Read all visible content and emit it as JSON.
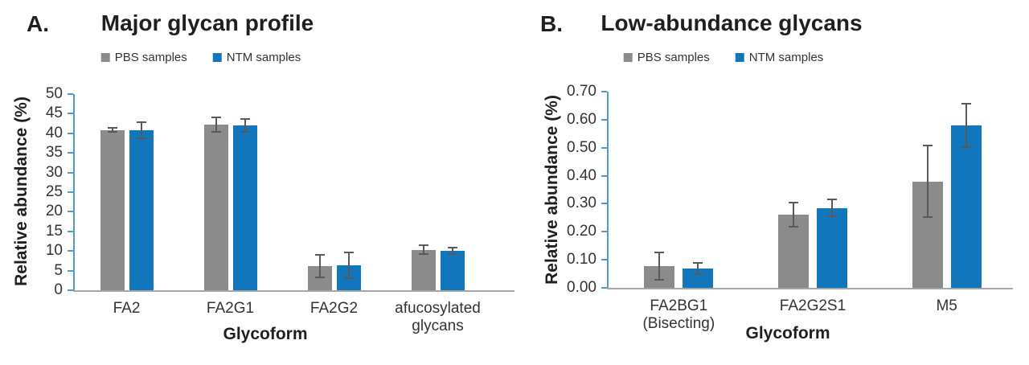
{
  "figure": {
    "colors": {
      "pbs_gray": "#8b8b8b",
      "ntm_blue": "#1276bc",
      "error_bar": "#595959",
      "y_axis_line": "#4f9bc9",
      "x_axis_line": "#a6a6a6"
    },
    "panels": [
      {
        "panel_label": "A.",
        "title": "Major glycan profile",
        "legend": [
          {
            "label": "PBS samples",
            "color": "#8b8b8b"
          },
          {
            "label": "NTM samples",
            "color": "#1276bc"
          }
        ],
        "chart_data": {
          "type": "bar",
          "title": "Major glycan profile",
          "xlabel": "Glycoform",
          "ylabel": "Relative abundance (%)",
          "ylim": [
            0,
            50
          ],
          "ytick_step": 5,
          "ytick_labels": [
            "0",
            "5",
            "10",
            "15",
            "20",
            "25",
            "30",
            "35",
            "40",
            "45",
            "50"
          ],
          "grid": false,
          "legend_position": "top",
          "categories": [
            "FA2",
            "FA2G1",
            "FA2G2",
            "afucosylated\nglycans"
          ],
          "series": [
            {
              "name": "PBS samples",
              "color": "#8b8b8b",
              "values": [
                40.8,
                42.2,
                6.2,
                10.3
              ],
              "errors": [
                0.5,
                1.9,
                2.9,
                1.1
              ]
            },
            {
              "name": "NTM samples",
              "color": "#1276bc",
              "values": [
                40.8,
                42.0,
                6.4,
                10.1
              ],
              "errors": [
                2.0,
                1.6,
                3.3,
                0.8
              ]
            }
          ]
        }
      },
      {
        "panel_label": "B.",
        "title": "Low-abundance glycans",
        "legend": [
          {
            "label": "PBS samples",
            "color": "#8b8b8b"
          },
          {
            "label": "NTM samples",
            "color": "#1276bc"
          }
        ],
        "chart_data": {
          "type": "bar",
          "title": "Low-abundance glycans",
          "xlabel": "Glycoform",
          "ylabel": "Relative abundance (%)",
          "ylim": [
            0,
            0.7
          ],
          "ytick_step": 0.1,
          "ytick_labels": [
            "0.00",
            "0.10",
            "0.20",
            "0.30",
            "0.40",
            "0.50",
            "0.60",
            "0.70"
          ],
          "grid": false,
          "legend_position": "top",
          "categories": [
            "FA2BG1\n(Bisecting)",
            "FA2G2S1",
            "M5"
          ],
          "series": [
            {
              "name": "PBS samples",
              "color": "#8b8b8b",
              "values": [
                0.078,
                0.26,
                0.38
              ],
              "errors": [
                0.048,
                0.043,
                0.127
              ]
            },
            {
              "name": "NTM samples",
              "color": "#1276bc",
              "values": [
                0.068,
                0.285,
                0.58
              ],
              "errors": [
                0.02,
                0.03,
                0.078
              ]
            }
          ]
        }
      }
    ]
  }
}
